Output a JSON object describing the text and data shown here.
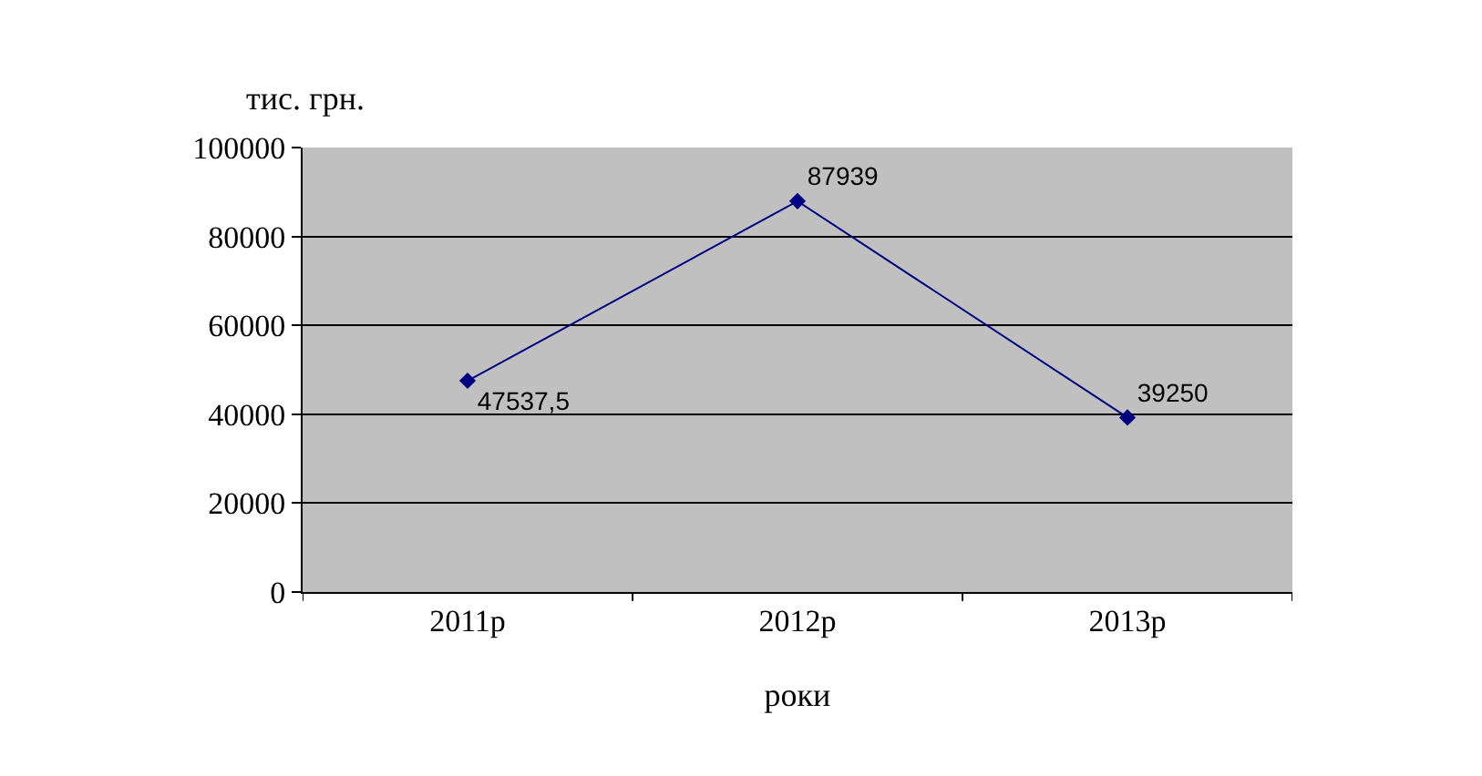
{
  "chart_data": {
    "type": "line",
    "xlabel": "роки",
    "ylabel": "тис. грн.",
    "categories": [
      "2011р",
      "2012р",
      "2013р"
    ],
    "series": [
      {
        "color": "#000080",
        "values": [
          47537.5,
          87939,
          39250
        ],
        "value_labels": [
          "47537,5",
          "87939",
          "39250"
        ]
      }
    ],
    "ylim": [
      0,
      100000
    ],
    "yticks": [
      0,
      20000,
      40000,
      60000,
      80000,
      100000
    ],
    "grid": "y",
    "legend": false,
    "marker": "diamond",
    "line_style": "solid"
  }
}
